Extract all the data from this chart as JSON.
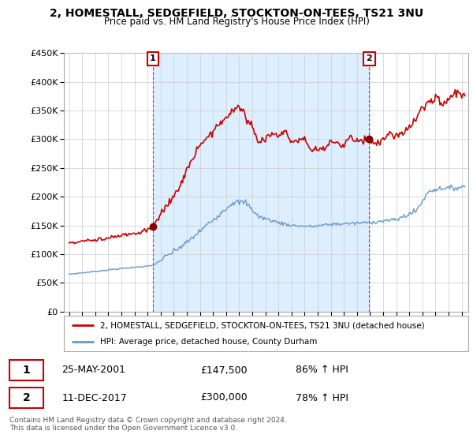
{
  "title": "2, HOMESTALL, SEDGEFIELD, STOCKTON-ON-TEES, TS21 3NU",
  "subtitle": "Price paid vs. HM Land Registry's House Price Index (HPI)",
  "legend_line1": "2, HOMESTALL, SEDGEFIELD, STOCKTON-ON-TEES, TS21 3NU (detached house)",
  "legend_line2": "HPI: Average price, detached house, County Durham",
  "footer": "Contains HM Land Registry data © Crown copyright and database right 2024.\nThis data is licensed under the Open Government Licence v3.0.",
  "sale1_date": "25-MAY-2001",
  "sale1_price": "£147,500",
  "sale1_hpi": "86% ↑ HPI",
  "sale2_date": "11-DEC-2017",
  "sale2_price": "£300,000",
  "sale2_hpi": "78% ↑ HPI",
  "sale1_x": 2001.39,
  "sale1_y": 147500,
  "sale2_x": 2017.94,
  "sale2_y": 300000,
  "red_color": "#cc0000",
  "blue_color": "#6699cc",
  "shade_color": "#ddeeff",
  "ylim": [
    0,
    450000
  ],
  "xlim_start": 1994.6,
  "xlim_end": 2025.5,
  "background": "#ffffff",
  "grid_color": "#cccccc"
}
